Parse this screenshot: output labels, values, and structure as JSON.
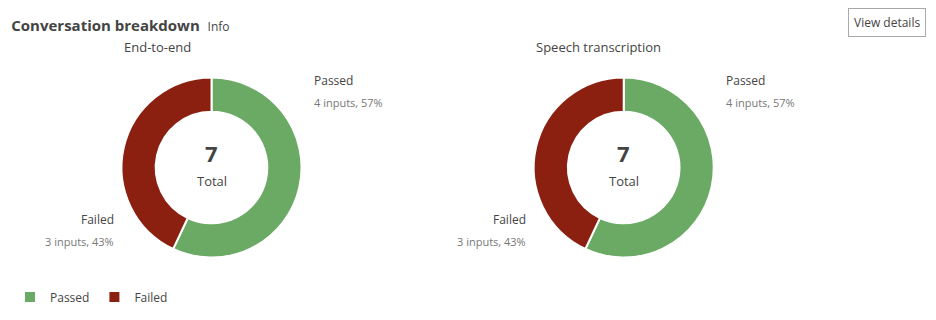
{
  "title": "Conversation breakdown",
  "subtitle": "Info",
  "annotations": [
    "View details"
  ],
  "legend": "lower left",
  "chart_data": [
    {
      "type": "donut",
      "title": "End-to-end",
      "categories": [
        "Passed",
        "Failed"
      ],
      "values": [
        57,
        43
      ],
      "colors": [
        "#6aaa64",
        "#8b2010"
      ],
      "data_labels": true,
      "value_labels": [
        "4 inputs, 57%",
        "3 inputs, 43%"
      ],
      "total": 7,
      "annotations": [
        "Total"
      ]
    },
    {
      "type": "donut",
      "title": "Speech transcription",
      "categories": [
        "Passed",
        "Failed"
      ],
      "values": [
        57,
        43
      ],
      "colors": [
        "#6aaa64",
        "#8b2010"
      ],
      "data_labels": true,
      "value_labels": [
        "4 inputs, 57%",
        "3 inputs, 43%"
      ],
      "total": 7,
      "annotations": [
        "Total"
      ]
    }
  ]
}
